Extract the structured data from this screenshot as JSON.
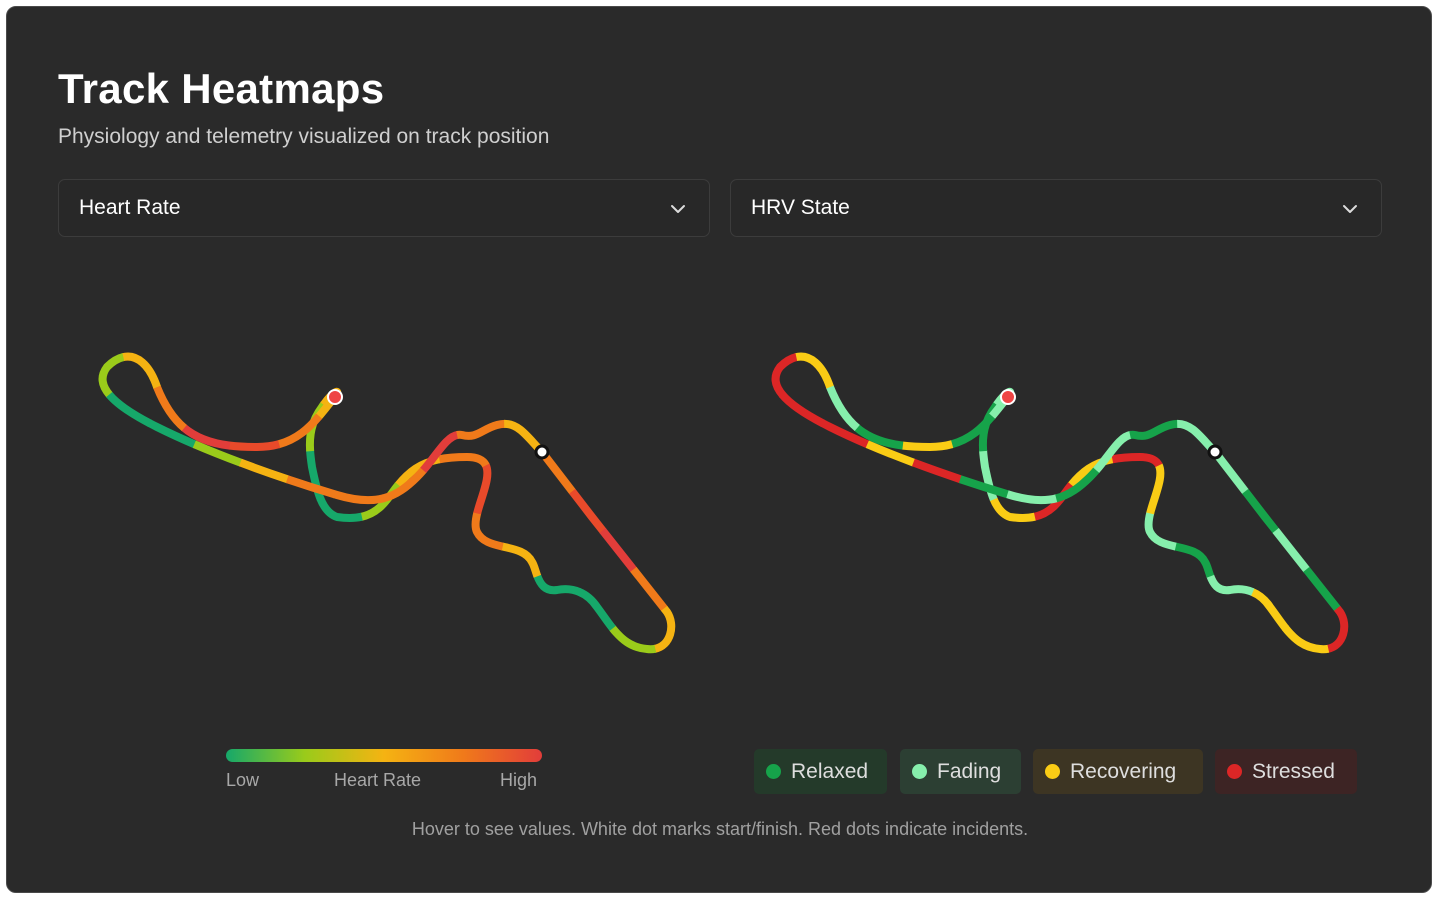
{
  "header": {
    "title": "Track Heatmaps",
    "subtitle": "Physiology and telemetry visualized on track position"
  },
  "selectors": {
    "left": {
      "value": "Heart Rate"
    },
    "right": {
      "value": "HRV State"
    }
  },
  "heart_rate_scale": {
    "low_label": "Low",
    "mid_label": "Heart Rate",
    "high_label": "High",
    "gradient_colors": [
      "#16a86a",
      "#9acb1a",
      "#f5b312",
      "#f07a1a",
      "#e23d3a"
    ]
  },
  "hrv_legend": [
    {
      "label": "Relaxed",
      "color": "#16a34a",
      "bg": "#243a2a"
    },
    {
      "label": "Fading",
      "color": "#86efac",
      "bg": "#2c3f33"
    },
    {
      "label": "Recovering",
      "color": "#facc15",
      "bg": "#3d3523"
    },
    {
      "label": "Stressed",
      "color": "#dc2626",
      "bg": "#3d2424"
    }
  ],
  "heart_rate_track": {
    "colors_along_lap": [
      "#f07a1a",
      "#e94a2a",
      "#e23d3a",
      "#f07a1a",
      "#f5b312",
      "#9acb1a",
      "#16a86a",
      "#16a86a",
      "#f5b312",
      "#f07a1a",
      "#e94a2a",
      "#f07a1a",
      "#f5b312",
      "#9acb1a",
      "#16a86a",
      "#16a86a",
      "#9acb1a",
      "#f5b312",
      "#f07a1a",
      "#e94a2a",
      "#e23d3a",
      "#f07a1a",
      "#f5b312",
      "#9acb1a",
      "#16a86a",
      "#16a86a",
      "#9acb1a",
      "#f5b312",
      "#f07a1a",
      "#f07a1a",
      "#f07a1a",
      "#e23d3a",
      "#f07a1a",
      "#f5b312"
    ]
  },
  "hrv_track": {
    "colors_along_lap": [
      "#86efac",
      "#16a34a",
      "#86efac",
      "#16a34a",
      "#dc2626",
      "#facc15",
      "#facc15",
      "#86efac",
      "#16a34a",
      "#86efac",
      "#facc15",
      "#dc2626",
      "#facc15",
      "#dc2626",
      "#facc15",
      "#86efac",
      "#16a34a",
      "#86efac",
      "#16a34a",
      "#facc15",
      "#16a34a",
      "#86efac",
      "#facc15",
      "#dc2626",
      "#dc2626",
      "#dc2626",
      "#facc15",
      "#dc2626",
      "#16a34a",
      "#86efac",
      "#16a34a",
      "#86efac",
      "#16a34a",
      "#86efac"
    ]
  },
  "footnote": "Hover to see values. White dot marks start/finish. Red dots indicate incidents."
}
